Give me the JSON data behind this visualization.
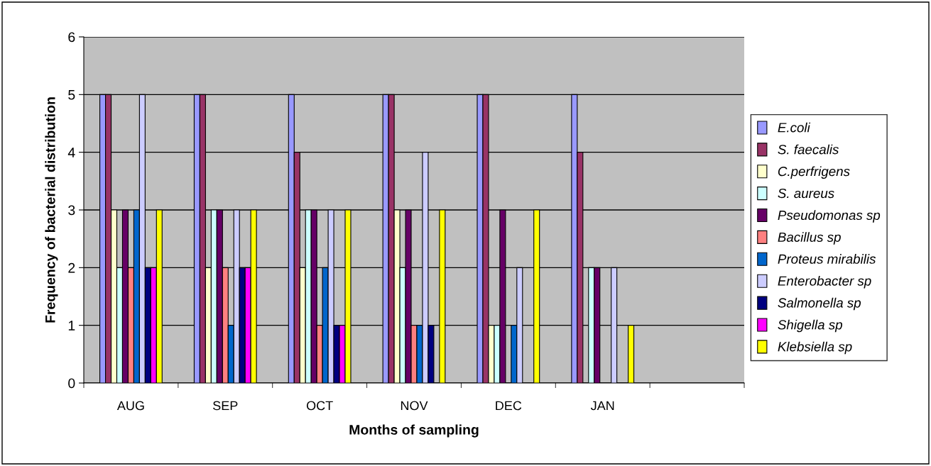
{
  "chart_data": {
    "type": "bar",
    "xlabel": "Months of sampling",
    "ylabel": "Frequency of bacterial distribution",
    "categories": [
      "AUG",
      "SEP",
      "OCT",
      "NOV",
      "DEC",
      "JAN",
      null
    ],
    "series": [
      {
        "name": "E.coli",
        "color": "#9999ff",
        "values": [
          5,
          5,
          5,
          5,
          5,
          5,
          null
        ]
      },
      {
        "name": "S. faecalis",
        "color": "#993366",
        "values": [
          5,
          5,
          4,
          5,
          5,
          4,
          null
        ]
      },
      {
        "name": "C.perfrigens",
        "color": "#ffffcc",
        "values": [
          3,
          2,
          2,
          3,
          1,
          0,
          null
        ]
      },
      {
        "name": "S. aureus",
        "color": "#ccffff",
        "values": [
          2,
          3,
          3,
          2,
          1,
          2,
          null
        ]
      },
      {
        "name": "Pseudomonas sp",
        "color": "#660066",
        "values": [
          3,
          3,
          3,
          3,
          3,
          2,
          null
        ]
      },
      {
        "name": "Bacillus sp",
        "color": "#ff8080",
        "values": [
          2,
          2,
          1,
          1,
          0,
          0,
          null
        ]
      },
      {
        "name": "Proteus mirabilis",
        "color": "#0066cc",
        "values": [
          3,
          1,
          2,
          1,
          1,
          0,
          null
        ]
      },
      {
        "name": "Enterobacter sp",
        "color": "#ccccff",
        "values": [
          5,
          3,
          3,
          4,
          2,
          2,
          null
        ]
      },
      {
        "name": "Salmonella sp",
        "color": "#000080",
        "values": [
          2,
          2,
          1,
          1,
          0,
          0,
          null
        ]
      },
      {
        "name": "Shigella sp",
        "color": "#ff00ff",
        "values": [
          2,
          2,
          1,
          0,
          0,
          0,
          null
        ]
      },
      {
        "name": "Klebsiella sp",
        "color": "#ffff00",
        "values": [
          3,
          3,
          3,
          3,
          3,
          1,
          null
        ]
      }
    ],
    "ylim": [
      0,
      6
    ],
    "yticks": [
      0,
      1,
      2,
      3,
      4,
      5,
      6
    ],
    "grid": "y",
    "legend": "right"
  }
}
